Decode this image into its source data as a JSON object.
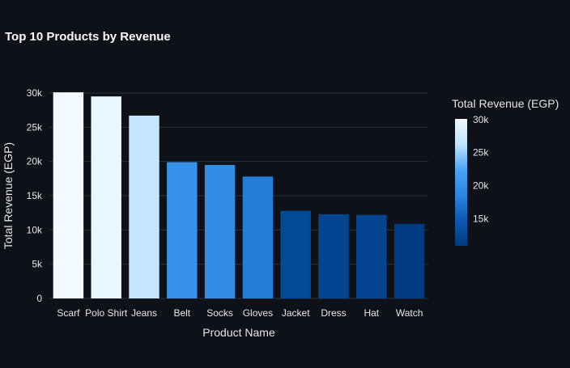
{
  "chart_data": {
    "type": "bar",
    "title": "Top 10 Products by Revenue",
    "xlabel": "Product Name",
    "ylabel": "Total Revenue (EGP)",
    "categories": [
      "Scarf",
      "Polo Shirt",
      "Jeans",
      "Belt",
      "Socks",
      "Gloves",
      "Jacket",
      "Dress",
      "Hat",
      "Watch"
    ],
    "values": [
      30100,
      29500,
      26700,
      19900,
      19500,
      17800,
      12800,
      12300,
      12200,
      10900
    ],
    "ylim": [
      0,
      30000
    ],
    "yticks": [
      0,
      5000,
      10000,
      15000,
      20000,
      25000,
      30000
    ],
    "ytick_labels": [
      "0",
      "5k",
      "10k",
      "15k",
      "20k",
      "25k",
      "30k"
    ],
    "grid": true,
    "legend": "none",
    "colorbar": {
      "title": "Total Revenue (EGP)",
      "placement": "right",
      "min": 10900,
      "max": 30100,
      "ticks": [
        15000,
        20000,
        25000,
        30000
      ],
      "tick_labels": [
        "15k",
        "20k",
        "25k",
        "30k"
      ],
      "colorscale": [
        "#003a80",
        "#0b58b2",
        "#2a86e2",
        "#4aa5f7",
        "#bfe3ff",
        "#f2f9ff"
      ]
    },
    "colors": {
      "background": "#0e1117",
      "gridline": "#2b2f38",
      "text": "#fafafa"
    }
  }
}
